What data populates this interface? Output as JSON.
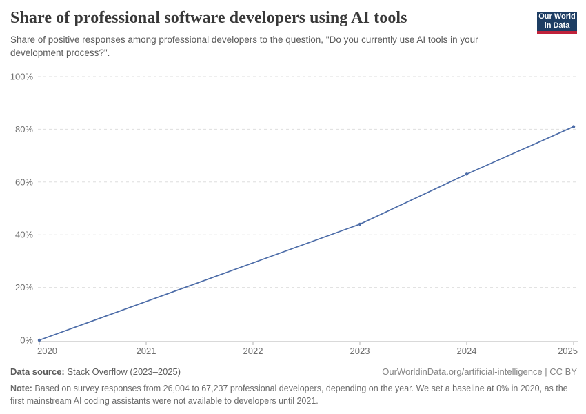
{
  "header": {
    "logo": {
      "line1": "Our World",
      "line2": "in Data",
      "bg": "#1d3d63",
      "accent": "#c0223b"
    }
  },
  "chart_data": {
    "type": "line",
    "title": "Share of professional software developers using AI tools",
    "subtitle": "Share of positive responses among professional developers to the question, \"Do you currently use AI tools in your development process?\".",
    "x": [
      2020,
      2023,
      2024,
      2025
    ],
    "values": [
      0,
      44,
      63,
      81
    ],
    "xlim": [
      2020,
      2025
    ],
    "ylim": [
      0,
      100
    ],
    "x_ticks": [
      2020,
      2021,
      2022,
      2023,
      2024,
      2025
    ],
    "y_ticks": [
      0,
      20,
      40,
      60,
      80,
      100
    ],
    "y_tick_suffix": "%",
    "grid": true,
    "legend": "none",
    "line_color": "#4c6ca8",
    "grid_color": "#dedede",
    "axis_color": "#b3b3b3",
    "tick_label_color": "#6e6e6e"
  },
  "footer": {
    "source_label": "Data source:",
    "source_value": " Stack Overflow (2023–2025)",
    "attribution": "OurWorldinData.org/artificial-intelligence | CC BY",
    "note_label": "Note:",
    "note_text": " Based on survey responses from 26,004 to 67,237 professional developers, depending on the year. We set a baseline at 0% in 2020, as the first mainstream AI coding assistants were not available to developers until 2021."
  }
}
